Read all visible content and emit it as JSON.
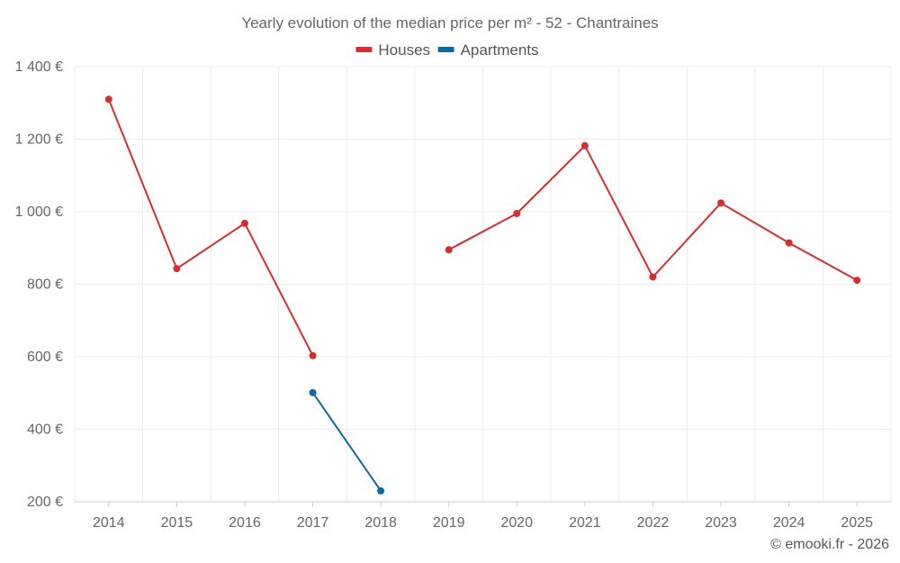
{
  "chart_data": {
    "type": "line",
    "title": "Yearly evolution of the median price per m² - 52 - Chantraines",
    "categories": [
      "2014",
      "2015",
      "2016",
      "2017",
      "2018",
      "2019",
      "2020",
      "2021",
      "2022",
      "2023",
      "2024",
      "2025"
    ],
    "ylim": [
      200,
      1400
    ],
    "yticks": [
      200,
      400,
      600,
      800,
      1000,
      1200,
      1400
    ],
    "ytick_labels": [
      "200 €",
      "400 €",
      "600 €",
      "800 €",
      "1 000 €",
      "1 200 €",
      "1 400 €"
    ],
    "legend_position": "top-center",
    "grid": true,
    "series": [
      {
        "name": "Houses",
        "color": "#d32f2f",
        "values": [
          1310,
          843,
          968,
          603,
          null,
          895,
          995,
          1182,
          820,
          1024,
          914,
          811
        ]
      },
      {
        "name": "Apartments",
        "color": "#0d6b9a",
        "values": [
          null,
          null,
          null,
          501,
          230,
          null,
          null,
          null,
          null,
          null,
          null,
          null
        ]
      }
    ]
  },
  "credit": "© emooki.fr - 2026"
}
